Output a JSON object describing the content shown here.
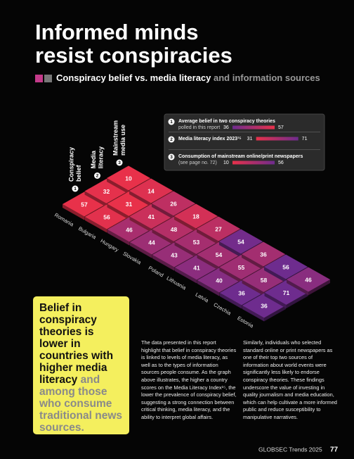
{
  "page": {
    "title": [
      "Informed minds",
      "resist conspiracies"
    ],
    "subtitle": {
      "bold": "Conspiracy belief vs. media literacy",
      "rest": "and information sources"
    },
    "highlight": {
      "bold": "Belief in conspiracy theories is lower in countries with higher media literacy",
      "rest": "and among those who consume traditional news sources."
    },
    "body": [
      "The data presented in this report highlight that belief in conspiracy theories is linked to levels of media literacy, as well as to the types of information sources people consume. As the graph above illustrates, the higher a country scores on the Media Literacy Index¹⁵, the lower the prevalence of conspiracy belief, suggesting a strong connection between critical thinking, media literacy, and the ability to interpret global affairs.",
      "Similarly, individuals who selected standard online or print newspapers as one of their top two sources of information about world events were significantly less likely to endorse conspiracy theories. These findings underscore the value of investing in quality journalism and media education, which can help cultivate a more informed public and reduce susceptibility to manipulative narratives."
    ],
    "footer": {
      "source": "GLOBSEC Trends 2025",
      "page_number": "77"
    }
  },
  "chart_data": {
    "type": "isometric-heatmap",
    "categories": [
      "Romania",
      "Bulgaria",
      "Hungary",
      "Slovakia",
      "Poland",
      "Lithuania",
      "Latvia",
      "Czechia",
      "Estonia"
    ],
    "series": [
      {
        "number": "1",
        "header": [
          "Conspiracy",
          "belief"
        ],
        "legend": {
          "bold": "Average belief in two conspiracy theories",
          "rest": "polled in this report"
        },
        "range": [
          36,
          57
        ],
        "colors": [
          "#6e2c8e",
          "#e8314a"
        ],
        "values": [
          57,
          56,
          46,
          44,
          43,
          41,
          40,
          36,
          36
        ]
      },
      {
        "number": "2",
        "header": [
          "Media",
          "literacy"
        ],
        "legend": {
          "bold": "Media literacy index 2023¹⁵",
          "rest": ""
        },
        "range": [
          31,
          71
        ],
        "colors": [
          "#e8314a",
          "#6e2c8e"
        ],
        "values": [
          32,
          31,
          41,
          48,
          53,
          54,
          55,
          58,
          71
        ]
      },
      {
        "number": "3",
        "header": [
          "Mainstream",
          "media use"
        ],
        "legend": {
          "bold": "Consumption of mainstream online/print newspapers",
          "rest": "(see page no. 72)"
        },
        "range": [
          10,
          56
        ],
        "colors": [
          "#e8314a",
          "#6e2c8e"
        ],
        "values": [
          10,
          14,
          26,
          18,
          27,
          54,
          36,
          56,
          46
        ]
      }
    ]
  }
}
